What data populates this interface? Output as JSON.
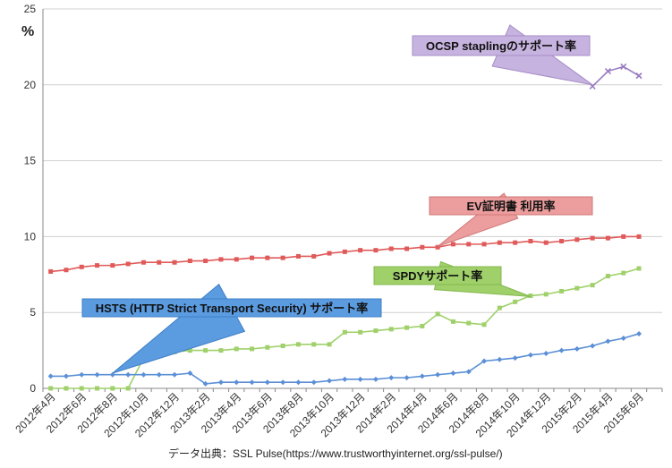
{
  "chart_data": {
    "type": "line",
    "title": "",
    "ylabel": "%",
    "xlabel": "",
    "ylim": [
      0,
      25
    ],
    "yticks": [
      0,
      5,
      10,
      15,
      20,
      25
    ],
    "x_count": 40,
    "x_tick_labels": [
      "2012年4月",
      "2012年6月",
      "2012年8月",
      "2012年10月",
      "2012年12月",
      "2013年2月",
      "2013年4月",
      "2013年6月",
      "2013年8月",
      "2013年10月",
      "2013年12月",
      "2014年2月",
      "2014年4月",
      "2014年6月",
      "2014年8月",
      "2014年10月",
      "2014年12月",
      "2015年2月",
      "2015年4月",
      "2015年6月"
    ],
    "source_text": "データ出典：SSL Pulse(https://www.trustworthyinternet.org/ssl-pulse/)",
    "series": [
      {
        "name": "EV証明書 利用率",
        "color": "#e05a5a",
        "marker": "square",
        "start": 0,
        "values": [
          7.7,
          7.8,
          8.0,
          8.1,
          8.1,
          8.2,
          8.3,
          8.3,
          8.3,
          8.4,
          8.4,
          8.5,
          8.5,
          8.6,
          8.6,
          8.6,
          8.7,
          8.7,
          8.9,
          9.0,
          9.1,
          9.1,
          9.2,
          9.2,
          9.3,
          9.3,
          9.5,
          9.5,
          9.5,
          9.6,
          9.6,
          9.7,
          9.6,
          9.7,
          9.8,
          9.9,
          9.9,
          10.0,
          10.0
        ]
      },
      {
        "name": "SPDYサポート率",
        "color": "#9fd06a",
        "marker": "square",
        "start": 0,
        "values": [
          0,
          0,
          0,
          0,
          0,
          0,
          2.0,
          2.4,
          2.4,
          2.5,
          2.5,
          2.5,
          2.6,
          2.6,
          2.7,
          2.8,
          2.9,
          2.9,
          2.9,
          3.7,
          3.7,
          3.8,
          3.9,
          4.0,
          4.1,
          4.9,
          4.4,
          4.3,
          4.2,
          5.3,
          5.7,
          6.1,
          6.2,
          6.4,
          6.6,
          6.8,
          7.4,
          7.6,
          7.9
        ]
      },
      {
        "name": "HSTS (HTTP Strict Transport Security) サポート率",
        "color": "#5b8fd6",
        "marker": "diamond",
        "start": 0,
        "values": [
          0.8,
          0.8,
          0.9,
          0.9,
          0.9,
          0.9,
          0.9,
          0.9,
          0.9,
          1.0,
          0.3,
          0.4,
          0.4,
          0.4,
          0.4,
          0.4,
          0.4,
          0.4,
          0.5,
          0.6,
          0.6,
          0.6,
          0.7,
          0.7,
          0.8,
          0.9,
          1.0,
          1.1,
          1.8,
          1.9,
          2.0,
          2.2,
          2.3,
          2.5,
          2.6,
          2.8,
          3.1,
          3.3,
          3.6
        ]
      },
      {
        "name": "OCSP staplingのサポート率",
        "color": "#9a7cc2",
        "marker": "x",
        "start": 35,
        "values": [
          19.9,
          20.9,
          21.2,
          20.6
        ]
      }
    ],
    "callouts": [
      {
        "text": "OCSP staplingのサポート率",
        "fill": "#c7b3df",
        "stroke": "#a58cc8",
        "series": 3,
        "point": 35,
        "pt_value": 20.0
      },
      {
        "text": "EV証明書 利用率",
        "fill": "#ec9d9d",
        "stroke": "#d07878",
        "series": 0,
        "point": 25,
        "pt_value": 9.35
      },
      {
        "text": "SPDYサポート率",
        "fill": "#9fd06a",
        "stroke": "#85b84f",
        "series": 1,
        "point": 31,
        "pt_value": 6.05
      },
      {
        "text": "HSTS (HTTP Strict Transport Security) サポート率",
        "fill": "#5b9be0",
        "stroke": "#3f7fc6",
        "series": 2,
        "point": 4,
        "pt_value": 1.0
      }
    ]
  }
}
